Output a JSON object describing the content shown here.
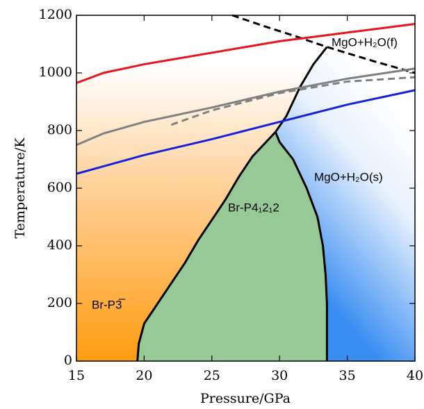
{
  "chart_data": {
    "type": "line",
    "xlabel": "Pressure/GPa",
    "ylabel": "Temperature/K",
    "xlim": [
      15,
      40
    ],
    "ylim": [
      0,
      1200
    ],
    "xticks": [
      15,
      20,
      25,
      30,
      35,
      40
    ],
    "yticks": [
      0,
      200,
      400,
      600,
      800,
      1000,
      1200
    ],
    "annotations": {
      "p3": "Br-P3̅",
      "p41212": "Br-P4₁2₁2",
      "solid": "MgO+H₂O(s)",
      "fluid": "MgO+H₂O(f)"
    },
    "series": [
      {
        "color": "#000000",
        "dash": false,
        "x": [
          19.5,
          19.6,
          20,
          21,
          22,
          23,
          24,
          25,
          26,
          27,
          28,
          29,
          29.7
        ],
        "values": [
          0,
          60,
          130,
          200,
          270,
          340,
          420,
          490,
          560,
          640,
          710,
          760,
          795
        ]
      },
      {
        "color": "#000000",
        "dash": false,
        "x": [
          29.7,
          30,
          31,
          32,
          32.8,
          33.2,
          33.4,
          33.5,
          33.5
        ],
        "values": [
          795,
          760,
          700,
          600,
          500,
          400,
          300,
          200,
          0
        ]
      },
      {
        "color": "#000000",
        "dash": false,
        "x": [
          29.7,
          30.5,
          31.5,
          32.5,
          33.5
        ],
        "values": [
          795,
          850,
          950,
          1030,
          1090
        ]
      },
      {
        "color": "#000000",
        "dash": true,
        "x": [
          26.5,
          29,
          31,
          33.5,
          37,
          40
        ],
        "values": [
          1200,
          1160,
          1130,
          1090,
          1040,
          1000
        ]
      },
      {
        "color": "#e8141b",
        "dash": false,
        "x": [
          15,
          17,
          20,
          25,
          30,
          35,
          40
        ],
        "values": [
          965,
          1000,
          1030,
          1070,
          1110,
          1140,
          1170
        ]
      },
      {
        "color": "#1420e0",
        "dash": false,
        "x": [
          15,
          20,
          25,
          30,
          35,
          40
        ],
        "values": [
          650,
          715,
          770,
          830,
          890,
          940
        ]
      },
      {
        "color": "#808080",
        "dash": false,
        "x": [
          15,
          17,
          20,
          25,
          30,
          35,
          40
        ],
        "values": [
          750,
          790,
          830,
          880,
          935,
          980,
          1015
        ]
      },
      {
        "color": "#808080",
        "dash": true,
        "x": [
          22,
          25,
          30,
          35,
          40
        ],
        "values": [
          820,
          870,
          930,
          970,
          985
        ]
      }
    ]
  }
}
